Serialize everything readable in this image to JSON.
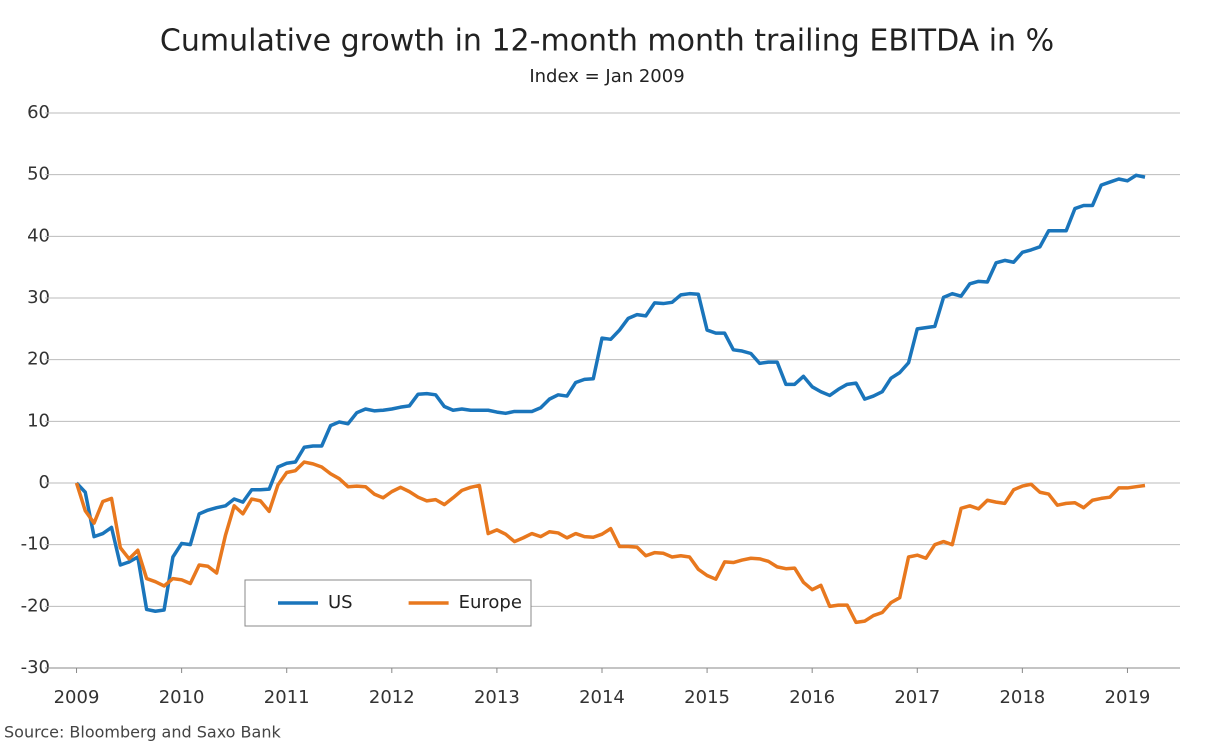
{
  "chart_data": {
    "type": "line",
    "title": "Cumulative growth in 12-month month trailing EBITDA in %",
    "subtitle": "Index = Jan 2009",
    "source": "Source: Bloomberg and Saxo Bank",
    "xlim": [
      2008.7,
      2019.5
    ],
    "xticks": [
      2009,
      2010,
      2011,
      2012,
      2013,
      2014,
      2015,
      2016,
      2017,
      2018,
      2019
    ],
    "ylim": [
      -30,
      60
    ],
    "yticks": [
      -30,
      -20,
      -10,
      0,
      10,
      20,
      30,
      40,
      50,
      60
    ],
    "grid": true,
    "legend": "lower left",
    "x": [
      2009,
      2009.083,
      2009.167,
      2009.25,
      2009.333,
      2009.417,
      2009.5,
      2009.583,
      2009.667,
      2009.75,
      2009.833,
      2009.917,
      2010,
      2010.083,
      2010.167,
      2010.25,
      2010.333,
      2010.417,
      2010.5,
      2010.583,
      2010.667,
      2010.75,
      2010.833,
      2010.917,
      2011,
      2011.083,
      2011.167,
      2011.25,
      2011.333,
      2011.417,
      2011.5,
      2011.583,
      2011.667,
      2011.75,
      2011.833,
      2011.917,
      2012,
      2012.083,
      2012.167,
      2012.25,
      2012.333,
      2012.417,
      2012.5,
      2012.583,
      2012.667,
      2012.75,
      2012.833,
      2012.917,
      2013,
      2013.083,
      2013.167,
      2013.25,
      2013.333,
      2013.417,
      2013.5,
      2013.583,
      2013.667,
      2013.75,
      2013.833,
      2013.917,
      2014,
      2014.083,
      2014.167,
      2014.25,
      2014.333,
      2014.417,
      2014.5,
      2014.583,
      2014.667,
      2014.75,
      2014.833,
      2014.917,
      2015,
      2015.083,
      2015.167,
      2015.25,
      2015.333,
      2015.417,
      2015.5,
      2015.583,
      2015.667,
      2015.75,
      2015.833,
      2015.917,
      2016,
      2016.083,
      2016.167,
      2016.25,
      2016.333,
      2016.417,
      2016.5,
      2016.583,
      2016.667,
      2016.75,
      2016.833,
      2016.917,
      2017,
      2017.083,
      2017.167,
      2017.25,
      2017.333,
      2017.417,
      2017.5,
      2017.583,
      2017.667,
      2017.75,
      2017.833,
      2017.917,
      2018,
      2018.083,
      2018.167,
      2018.25,
      2018.333,
      2018.417,
      2018.5,
      2018.583,
      2018.667,
      2018.75,
      2018.833,
      2018.917,
      2019,
      2019.083,
      2019.167
    ],
    "series": [
      {
        "name": "US",
        "color": "#1a75bb",
        "values": [
          0,
          -1.5,
          -8.7,
          -8.2,
          -7.2,
          -13.3,
          -12.8,
          -12,
          -20.5,
          -20.8,
          -20.6,
          -12,
          -9.8,
          -10,
          -5,
          -4.4,
          -4,
          -3.7,
          -2.6,
          -3.1,
          -1.1,
          -1.1,
          -1,
          2.6,
          3.2,
          3.4,
          5.8,
          6,
          6,
          9.3,
          9.9,
          9.6,
          11.4,
          12,
          11.7,
          11.8,
          12,
          12.3,
          12.5,
          14.4,
          14.5,
          14.3,
          12.4,
          11.8,
          12,
          11.8,
          11.8,
          11.8,
          11.5,
          11.3,
          11.6,
          11.6,
          11.6,
          12.2,
          13.6,
          14.3,
          14.1,
          16.3,
          16.8,
          16.9,
          23.5,
          23.3,
          24.8,
          26.7,
          27.3,
          27.1,
          29.2,
          29.1,
          29.3,
          30.5,
          30.7,
          30.6,
          24.8,
          24.3,
          24.3,
          21.6,
          21.4,
          21,
          19.4,
          19.6,
          19.6,
          16,
          16,
          17.3,
          15.6,
          14.8,
          14.2,
          15.2,
          16,
          16.2,
          13.6,
          14.1,
          14.8,
          17,
          17.9,
          19.5,
          25,
          25.2,
          25.4,
          30.1,
          30.7,
          30.3,
          32.3,
          32.7,
          32.6,
          35.7,
          36.1,
          35.8,
          37.4,
          37.8,
          38.3,
          40.9,
          40.9,
          40.9,
          44.5,
          45,
          45,
          48.3,
          48.8,
          49.3,
          49,
          49.9,
          49.6
        ]
      },
      {
        "name": "Europe",
        "color": "#e8781e",
        "values": [
          0,
          -4.5,
          -6.5,
          -3,
          -2.5,
          -10.5,
          -12.3,
          -10.9,
          -15.5,
          -16,
          -16.7,
          -15.5,
          -15.7,
          -16.3,
          -13.3,
          -13.5,
          -14.6,
          -8.5,
          -3.7,
          -5,
          -2.6,
          -2.9,
          -4.6,
          -0.3,
          1.7,
          2,
          3.4,
          3.1,
          2.6,
          1.5,
          0.7,
          -0.6,
          -0.5,
          -0.6,
          -1.8,
          -2.4,
          -1.4,
          -0.7,
          -1.4,
          -2.3,
          -2.9,
          -2.7,
          -3.5,
          -2.4,
          -1.2,
          -0.7,
          -0.4,
          -8.2,
          -7.6,
          -8.3,
          -9.5,
          -8.9,
          -8.2,
          -8.7,
          -7.9,
          -8.1,
          -8.9,
          -8.2,
          -8.7,
          -8.8,
          -8.3,
          -7.4,
          -10.3,
          -10.3,
          -10.4,
          -11.8,
          -11.3,
          -11.4,
          -12,
          -11.8,
          -12,
          -14,
          -15,
          -15.6,
          -12.8,
          -12.9,
          -12.5,
          -12.2,
          -12.3,
          -12.7,
          -13.6,
          -13.9,
          -13.8,
          -16.1,
          -17.3,
          -16.6,
          -20,
          -19.8,
          -19.8,
          -22.6,
          -22.4,
          -21.5,
          -21,
          -19.4,
          -18.6,
          -12,
          -11.7,
          -12.2,
          -10,
          -9.5,
          -10,
          -4.1,
          -3.7,
          -4.2,
          -2.8,
          -3.1,
          -3.3,
          -1.1,
          -0.5,
          -0.2,
          -1.5,
          -1.8,
          -3.6,
          -3.3,
          -3.2,
          -4,
          -2.8,
          -2.5,
          -2.3,
          -0.8,
          -0.8,
          -0.6,
          -0.4
        ]
      }
    ]
  }
}
